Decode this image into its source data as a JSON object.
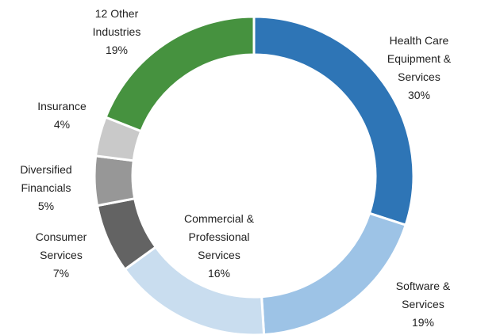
{
  "chart_data": {
    "type": "donut",
    "categories": [
      "Health Care Equipment & Services",
      "Software & Services",
      "Commercial & Professional Services",
      "Consumer Services",
      "Diversified Financials",
      "Insurance",
      "12 Other Industries"
    ],
    "values": [
      30,
      19,
      16,
      7,
      5,
      4,
      19
    ],
    "value_labels": [
      "30%",
      "19%",
      "16%",
      "7%",
      "5%",
      "4%",
      "19%"
    ],
    "colors": [
      "#2e75b6",
      "#9dc3e6",
      "#c9ddef",
      "#636363",
      "#979797",
      "#c9c9c9",
      "#46923f"
    ]
  }
}
